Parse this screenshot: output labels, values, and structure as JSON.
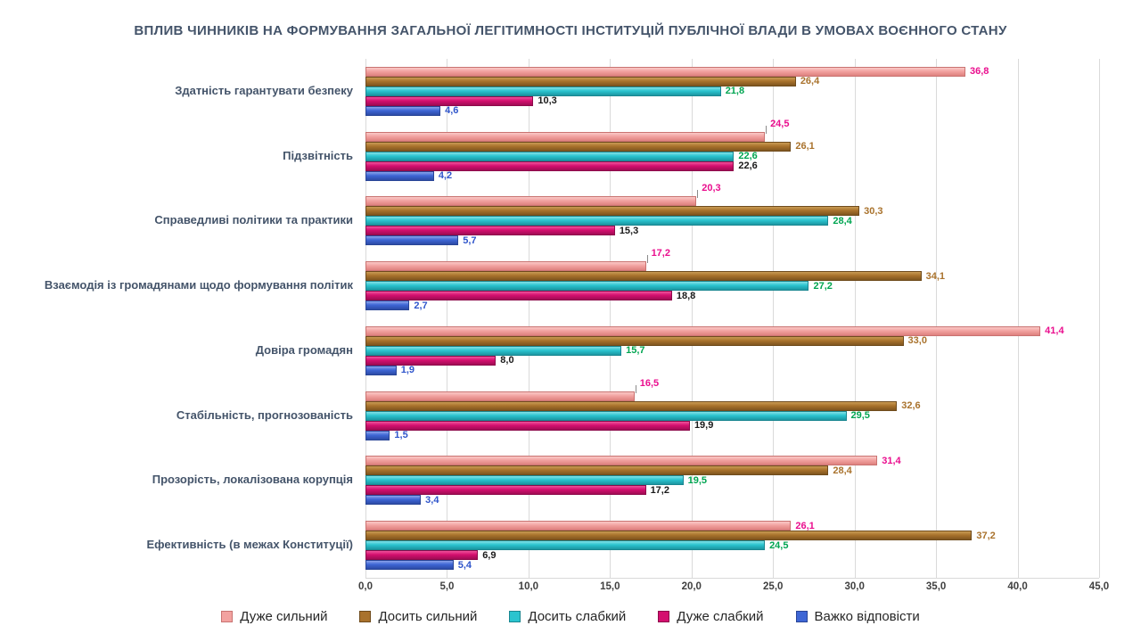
{
  "title": "ВПЛИВ ЧИННИКІВ НА ФОРМУВАННЯ ЗАГАЛЬНОЇ ЛЕГІТИМНОСТІ ІНСТИТУЦІЙ ПУБЛІЧНОЇ ВЛАДИ В УМОВАХ ВОЄННОГО СТАНУ",
  "chart_data": {
    "type": "bar",
    "orientation": "horizontal",
    "xlim": [
      0,
      45
    ],
    "grid": true,
    "legend_position": "bottom",
    "x_ticks": [
      "0,0",
      "5,0",
      "10,0",
      "15,0",
      "20,0",
      "25,0",
      "30,0",
      "35,0",
      "40,0",
      "45,0"
    ],
    "categories": [
      "Здатність гарантувати безпеку",
      "Підзвітність",
      "Справедливі політики та практики",
      "Взаємодія із громадянами щодо формування політик",
      "Довіра громадян",
      "Стабільність, прогнозованість",
      "Прозорість, локалізована корупція",
      "Ефективність (в межах Конституції)"
    ],
    "series": [
      {
        "name": "Дуже сильний",
        "color": "#F2A2A0",
        "color_light": "#FAC9C7",
        "color_dark": "#DE817E",
        "color_border": "#C97371",
        "label_color": "#EA0E8E",
        "values": [
          36.8,
          24.5,
          20.3,
          17.2,
          41.4,
          16.5,
          31.4,
          26.1
        ]
      },
      {
        "name": "Досить сильний",
        "color": "#A9722C",
        "color_light": "#C99B54",
        "color_dark": "#7F561F",
        "color_border": "#6F4B1C",
        "label_color": "#A9722C",
        "values": [
          26.4,
          26.1,
          30.3,
          34.1,
          33.0,
          32.6,
          28.4,
          37.2
        ]
      },
      {
        "name": "Досить слабкий",
        "color": "#2AC4CF",
        "color_light": "#84E1E7",
        "color_dark": "#1C96A1",
        "color_border": "#1A8791",
        "label_color": "#00A551",
        "values": [
          21.8,
          22.6,
          28.4,
          27.2,
          15.7,
          29.5,
          19.5,
          24.5
        ]
      },
      {
        "name": "Дуже слабкий",
        "color": "#D40F6F",
        "color_light": "#EF539B",
        "color_dark": "#A00C54",
        "color_border": "#8E0A4B",
        "label_color": "#1A1A1A",
        "values": [
          10.3,
          22.6,
          15.3,
          18.8,
          8.0,
          19.9,
          17.2,
          6.9
        ]
      },
      {
        "name": "Важко відповісти",
        "color": "#3E66D5",
        "color_light": "#8AA3EB",
        "color_dark": "#2C4BA6",
        "color_border": "#294597",
        "label_color": "#2F55CB",
        "values": [
          4.6,
          4.2,
          5.7,
          2.7,
          1.9,
          1.5,
          3.4,
          5.4
        ]
      }
    ],
    "callout_labels": [
      {
        "series": 0,
        "category": 1
      },
      {
        "series": 0,
        "category": 2
      },
      {
        "series": 0,
        "category": 3
      },
      {
        "series": 0,
        "category": 5
      }
    ]
  }
}
